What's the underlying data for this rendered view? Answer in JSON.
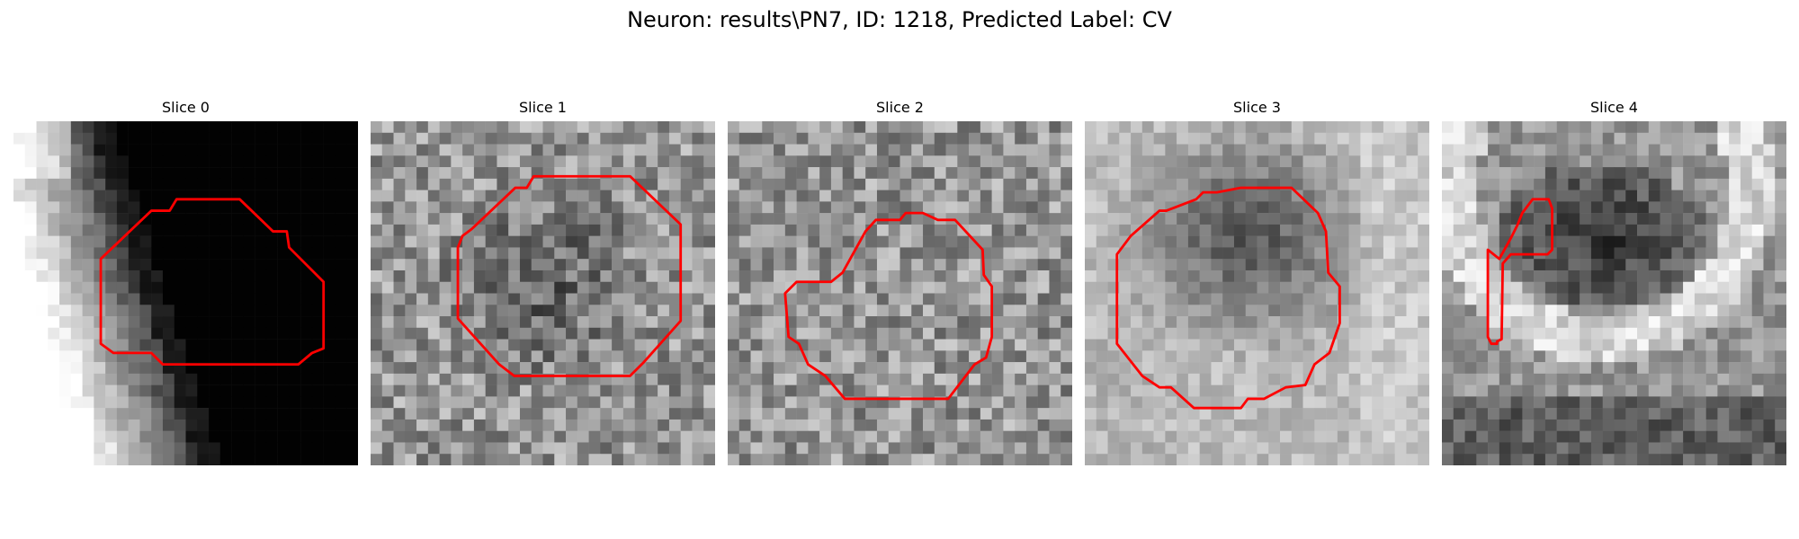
{
  "figure": {
    "title": "Neuron: results\\PN7, ID: 1218, Predicted Label: CV"
  },
  "panels": [
    {
      "title": "Slice 0",
      "base_shade": "dark",
      "roi_color": "#ff0000"
    },
    {
      "title": "Slice 1",
      "base_shade": "mid",
      "roi_color": "#ff0000"
    },
    {
      "title": "Slice 2",
      "base_shade": "mid",
      "roi_color": "#ff0000"
    },
    {
      "title": "Slice 3",
      "base_shade": "mid",
      "roi_color": "#ff0000"
    },
    {
      "title": "Slice 4",
      "base_shade": "mid",
      "roi_color": "#ff0000"
    }
  ]
}
